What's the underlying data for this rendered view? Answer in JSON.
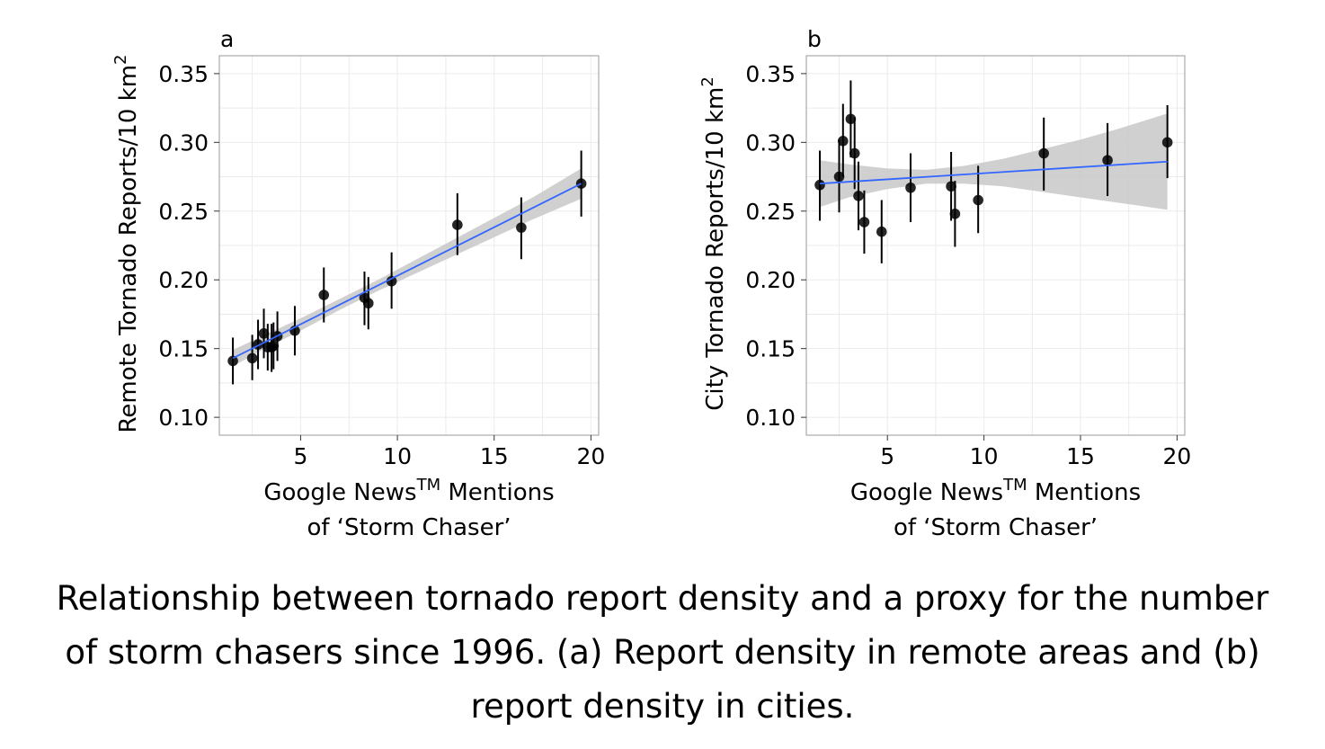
{
  "caption": "Relationship between tornado report density and a proxy for the number of storm chasers since 1996. (a) Report density in remote areas and (b) report density in cities.",
  "colors": {
    "points": "#000000",
    "fit_line": "#3366ff",
    "confidence_band": "#c8c8c8",
    "grid": "#ebebeb",
    "frame": "#999999"
  },
  "chart_data": [
    {
      "type": "scatter",
      "panel_label": "a",
      "ylabel": "Remote Tornado Reports/10 km",
      "ylabel_sup": "2",
      "xlabel_line1": "Google News",
      "xlabel_sup": "TM",
      "xlabel_line1_end": " Mentions",
      "xlabel_line2": "of ‘Storm Chaser’",
      "xlim": [
        0.8,
        20.4
      ],
      "ylim": [
        0.087,
        0.363
      ],
      "xticks": [
        5,
        10,
        15,
        20
      ],
      "yticks": [
        0.1,
        0.15,
        0.2,
        0.25,
        0.3,
        0.35
      ],
      "ytick_labels": [
        "0.10",
        "0.15",
        "0.20",
        "0.25",
        "0.30",
        "0.35"
      ],
      "points": [
        {
          "x": 1.5,
          "y": 0.141,
          "lo": 0.124,
          "hi": 0.158
        },
        {
          "x": 2.5,
          "y": 0.143,
          "lo": 0.127,
          "hi": 0.16
        },
        {
          "x": 2.8,
          "y": 0.153,
          "lo": 0.135,
          "hi": 0.171
        },
        {
          "x": 3.1,
          "y": 0.161,
          "lo": 0.143,
          "hi": 0.179
        },
        {
          "x": 3.3,
          "y": 0.151,
          "lo": 0.134,
          "hi": 0.168
        },
        {
          "x": 3.5,
          "y": 0.151,
          "lo": 0.133,
          "hi": 0.168
        },
        {
          "x": 3.6,
          "y": 0.152,
          "lo": 0.135,
          "hi": 0.169
        },
        {
          "x": 3.8,
          "y": 0.159,
          "lo": 0.141,
          "hi": 0.177
        },
        {
          "x": 4.7,
          "y": 0.163,
          "lo": 0.145,
          "hi": 0.181
        },
        {
          "x": 6.2,
          "y": 0.189,
          "lo": 0.169,
          "hi": 0.209
        },
        {
          "x": 8.3,
          "y": 0.187,
          "lo": 0.167,
          "hi": 0.206
        },
        {
          "x": 8.5,
          "y": 0.183,
          "lo": 0.164,
          "hi": 0.202
        },
        {
          "x": 9.7,
          "y": 0.199,
          "lo": 0.179,
          "hi": 0.22
        },
        {
          "x": 13.1,
          "y": 0.24,
          "lo": 0.218,
          "hi": 0.263
        },
        {
          "x": 16.4,
          "y": 0.238,
          "lo": 0.215,
          "hi": 0.26
        },
        {
          "x": 19.5,
          "y": 0.27,
          "lo": 0.246,
          "hi": 0.294
        }
      ],
      "fit": {
        "x": [
          1.5,
          19.5
        ],
        "y": [
          0.143,
          0.27
        ]
      },
      "band": {
        "x": [
          1.5,
          3,
          5,
          7,
          9,
          11,
          13,
          15,
          17,
          19.5
        ],
        "lo": [
          0.137,
          0.149,
          0.163,
          0.178,
          0.192,
          0.205,
          0.218,
          0.231,
          0.244,
          0.259
        ],
        "hi": [
          0.149,
          0.159,
          0.172,
          0.186,
          0.2,
          0.215,
          0.23,
          0.245,
          0.26,
          0.281
        ]
      }
    },
    {
      "type": "scatter",
      "panel_label": "b",
      "ylabel": "City Tornado Reports/10 km",
      "ylabel_sup": "2",
      "xlabel_line1": "Google News",
      "xlabel_sup": "TM",
      "xlabel_line1_end": " Mentions",
      "xlabel_line2": "of ‘Storm Chaser’",
      "xlim": [
        0.8,
        20.4
      ],
      "ylim": [
        0.087,
        0.363
      ],
      "xticks": [
        5,
        10,
        15,
        20
      ],
      "yticks": [
        0.1,
        0.15,
        0.2,
        0.25,
        0.3,
        0.35
      ],
      "ytick_labels": [
        "0.10",
        "0.15",
        "0.20",
        "0.25",
        "0.30",
        "0.35"
      ],
      "points": [
        {
          "x": 1.5,
          "y": 0.269,
          "lo": 0.243,
          "hi": 0.294
        },
        {
          "x": 2.5,
          "y": 0.275,
          "lo": 0.249,
          "hi": 0.302
        },
        {
          "x": 2.7,
          "y": 0.301,
          "lo": 0.275,
          "hi": 0.328
        },
        {
          "x": 3.1,
          "y": 0.317,
          "lo": 0.289,
          "hi": 0.345
        },
        {
          "x": 3.3,
          "y": 0.292,
          "lo": 0.266,
          "hi": 0.318
        },
        {
          "x": 3.5,
          "y": 0.261,
          "lo": 0.236,
          "hi": 0.286
        },
        {
          "x": 3.8,
          "y": 0.242,
          "lo": 0.219,
          "hi": 0.265
        },
        {
          "x": 4.7,
          "y": 0.235,
          "lo": 0.212,
          "hi": 0.258
        },
        {
          "x": 6.2,
          "y": 0.267,
          "lo": 0.242,
          "hi": 0.292
        },
        {
          "x": 8.3,
          "y": 0.268,
          "lo": 0.243,
          "hi": 0.293
        },
        {
          "x": 8.5,
          "y": 0.248,
          "lo": 0.224,
          "hi": 0.272
        },
        {
          "x": 9.7,
          "y": 0.258,
          "lo": 0.234,
          "hi": 0.283
        },
        {
          "x": 13.1,
          "y": 0.292,
          "lo": 0.265,
          "hi": 0.318
        },
        {
          "x": 16.4,
          "y": 0.287,
          "lo": 0.261,
          "hi": 0.314
        },
        {
          "x": 19.5,
          "y": 0.3,
          "lo": 0.274,
          "hi": 0.327
        }
      ],
      "fit": {
        "x": [
          1.5,
          19.5
        ],
        "y": [
          0.27,
          0.286
        ]
      },
      "band": {
        "x": [
          1.5,
          3,
          5,
          7,
          9,
          11,
          13,
          15,
          17,
          19.5
        ],
        "lo": [
          0.253,
          0.26,
          0.266,
          0.27,
          0.27,
          0.268,
          0.264,
          0.26,
          0.256,
          0.251
        ],
        "hi": [
          0.287,
          0.284,
          0.281,
          0.28,
          0.283,
          0.288,
          0.295,
          0.302,
          0.31,
          0.321
        ]
      }
    }
  ]
}
